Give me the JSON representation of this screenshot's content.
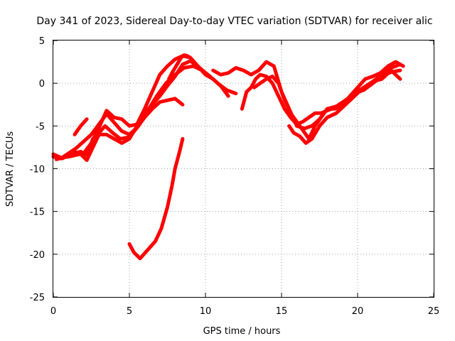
{
  "chart_data": {
    "type": "line",
    "title": "Day 341 of 2023, Sidereal Day-to-day VTEC variation (SDTVAR) for receiver alic",
    "xlabel": "GPS time / hours",
    "ylabel": "SDTVAR / TECUs",
    "xlim": [
      0,
      25
    ],
    "ylim": [
      -25,
      5
    ],
    "xticks": [
      "0",
      "5",
      "10",
      "15",
      "20",
      "25"
    ],
    "yticks": [
      "5",
      "0",
      "-5",
      "-10",
      "-15",
      "-20",
      "-25"
    ],
    "grid": true,
    "color": "#ff0000",
    "series": [
      {
        "name": "s1",
        "x": [
          0,
          0.5,
          1,
          1.5,
          2,
          2.5,
          3,
          3.5,
          4,
          4.5,
          5,
          5.5,
          6,
          6.5,
          7,
          7.5,
          8,
          8.5,
          9,
          9.5,
          10,
          10.5,
          11,
          11.5
        ],
        "y": [
          -8.3,
          -8.7,
          -8.6,
          -8.4,
          -8.2,
          -7.0,
          -5.2,
          -3.2,
          -4.0,
          -4.2,
          -5.0,
          -4.8,
          -3.0,
          -1.0,
          1.0,
          2.0,
          2.8,
          3.2,
          3.0,
          2.0,
          1.0,
          0.5,
          -0.3,
          -1.5
        ]
      },
      {
        "name": "s2",
        "x": [
          0,
          0.5,
          1,
          1.5,
          2,
          2.5,
          3,
          3.5,
          4,
          4.5,
          5,
          5.5,
          6,
          6.5,
          7,
          7.5,
          8,
          8.5
        ],
        "y": [
          -8.6,
          -8.8,
          -8.2,
          -7.6,
          -6.8,
          -6.0,
          -4.8,
          -3.6,
          -4.6,
          -5.6,
          -6.0,
          -5.2,
          -4.0,
          -3.0,
          -2.2,
          -2.0,
          -1.8,
          -2.5
        ]
      },
      {
        "name": "s3",
        "x": [
          0.2,
          0.8,
          1.3,
          1.8,
          2.2,
          2.6,
          3.0,
          3.4,
          3.9,
          4.4,
          5.0,
          5.6,
          6.2,
          6.8,
          7.4,
          8.0,
          8.6,
          9.2,
          9.8,
          10.3,
          10.8,
          11.4,
          12.0
        ],
        "y": [
          -8.9,
          -8.6,
          -8.2,
          -8.0,
          -8.4,
          -6.5,
          -5.8,
          -5.0,
          -5.8,
          -6.5,
          -6.3,
          -5.0,
          -3.2,
          -1.5,
          0.0,
          1.0,
          1.8,
          2.0,
          1.5,
          0.8,
          0.0,
          -0.8,
          -1.2
        ]
      },
      {
        "name": "s4",
        "x": [
          0.2,
          0.6,
          1.0,
          1.4,
          1.8,
          2.2,
          2.6,
          3.0,
          3.5,
          4.0,
          4.5,
          5.0,
          5.5,
          6.0,
          6.5,
          7.0,
          7.5,
          8.0,
          8.5,
          9.0,
          9.5,
          10.0
        ],
        "y": [
          -8.5,
          -8.8,
          -8.4,
          -8.0,
          -8.3,
          -9.0,
          -7.5,
          -6.0,
          -6.0,
          -6.5,
          -7.0,
          -6.5,
          -5.0,
          -3.5,
          -2.5,
          -1.5,
          -0.3,
          0.8,
          2.2,
          2.6,
          2.0,
          1.2
        ]
      },
      {
        "name": "s5",
        "x": [
          1.4,
          1.6,
          1.8,
          2.0,
          2.2
        ],
        "y": [
          -6.0,
          -5.5,
          -5.0,
          -4.6,
          -4.2
        ]
      },
      {
        "name": "s6",
        "x": [
          7.6,
          7.8,
          8.0,
          8.2,
          8.4,
          8.6,
          8.8,
          9.0
        ],
        "y": [
          0.5,
          1.2,
          1.8,
          2.4,
          3.0,
          3.3,
          3.2,
          3.0
        ]
      },
      {
        "name": "s7",
        "x": [
          5.0,
          5.3,
          5.7,
          6.2,
          6.7,
          7.1,
          7.5,
          7.8,
          8.0,
          8.3,
          8.5
        ],
        "y": [
          -18.8,
          -19.8,
          -20.5,
          -19.5,
          -18.5,
          -17.0,
          -14.5,
          -12.0,
          -10.0,
          -8.0,
          -6.5
        ]
      },
      {
        "name": "s8",
        "x": [
          10.5,
          11.0,
          11.5,
          12.0,
          12.5,
          13.0,
          13.5,
          14.0,
          14.5,
          15.0,
          15.5,
          16.0,
          16.5,
          17.0,
          17.5,
          18.0,
          18.5,
          19.0,
          19.5,
          20.0,
          20.5,
          21.0,
          21.5,
          22.0,
          22.5,
          23.0
        ],
        "y": [
          1.5,
          1.0,
          1.2,
          1.8,
          1.5,
          1.0,
          1.5,
          2.5,
          2.0,
          -1.0,
          -3.0,
          -5.0,
          -5.3,
          -5.0,
          -4.2,
          -3.0,
          -3.0,
          -2.6,
          -1.5,
          -0.5,
          0.5,
          0.8,
          1.2,
          2.0,
          2.5,
          2.0
        ]
      },
      {
        "name": "s9",
        "x": [
          12.4,
          12.7,
          13.0,
          13.3,
          13.6,
          14.0,
          14.4,
          14.8,
          15.2,
          15.6,
          16.0,
          16.4,
          16.8,
          17.2,
          17.6,
          18.0,
          18.6,
          19.2,
          19.8,
          20.4,
          21.0,
          21.6,
          22.2,
          22.8
        ],
        "y": [
          -3.0,
          -1.0,
          -0.5,
          0.5,
          1.0,
          0.8,
          0.0,
          -1.5,
          -3.0,
          -4.0,
          -4.8,
          -4.5,
          -4.0,
          -3.5,
          -3.5,
          -3.2,
          -2.8,
          -2.0,
          -1.2,
          -0.5,
          0.2,
          1.0,
          1.8,
          2.2
        ]
      },
      {
        "name": "s10",
        "x": [
          13.2,
          13.6,
          14.0,
          14.4,
          14.8,
          15.2,
          15.6,
          16.0,
          16.4,
          16.8,
          17.2,
          17.6,
          18.0,
          18.6,
          19.2,
          19.8,
          20.4,
          21.0,
          21.6,
          22.2,
          22.8
        ],
        "y": [
          -0.5,
          0.0,
          0.5,
          0.8,
          0.0,
          -2.0,
          -3.5,
          -4.5,
          -5.5,
          -6.5,
          -5.0,
          -4.0,
          -3.0,
          -2.7,
          -2.0,
          -1.2,
          -0.8,
          0.0,
          0.8,
          1.3,
          1.5
        ]
      },
      {
        "name": "s11",
        "x": [
          15.5,
          15.8,
          16.2,
          16.6,
          17.0,
          17.5,
          18.0,
          18.6,
          19.2,
          19.8,
          20.4,
          21.0,
          21.6,
          22.2,
          22.8
        ],
        "y": [
          -5.0,
          -5.8,
          -6.2,
          -7.0,
          -6.5,
          -5.0,
          -4.0,
          -3.5,
          -2.5,
          -1.5,
          -0.5,
          0.2,
          0.5,
          1.5,
          0.5
        ]
      }
    ]
  }
}
